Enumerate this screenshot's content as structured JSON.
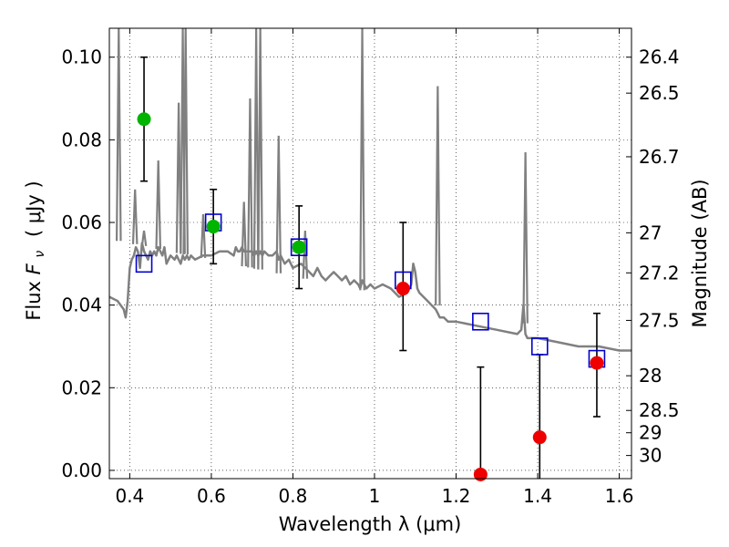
{
  "chart_data": {
    "type": "scatter",
    "title": "",
    "xlabel": "Wavelength  λ (μm)",
    "ylabel": "Flux  F_ν  ( μJy )",
    "ylabel_parts": {
      "prefix": "Flux  ",
      "symbol": "F",
      "subscript": "ν",
      "unit": "( μJy )"
    },
    "y2label": "Magnitude (AB)",
    "xlim": [
      0.35,
      1.63
    ],
    "ylim": [
      -0.002,
      0.107
    ],
    "grid": true,
    "x_ticks": [
      0.4,
      0.6,
      0.8,
      1.0,
      1.2,
      1.4,
      1.6
    ],
    "x_tick_labels": [
      "0.4",
      "0.6",
      "0.8",
      "1",
      "1.2",
      "1.4",
      "1.6"
    ],
    "y_ticks": [
      0.0,
      0.02,
      0.04,
      0.06,
      0.08,
      0.1
    ],
    "y_tick_labels": [
      "0.00",
      "0.02",
      "0.04",
      "0.06",
      "0.08",
      "0.10"
    ],
    "y2_tick_labels": [
      "26.4",
      "26.5",
      "26.7",
      "27",
      "27.2",
      "27.5",
      "28",
      "28.5",
      "29",
      "30"
    ],
    "y2_tick_values_flux": [
      0.1,
      0.0913,
      0.0759,
      0.0575,
      0.0478,
      0.0363,
      0.0229,
      0.0145,
      0.0091,
      0.0036
    ],
    "series": [
      {
        "kind": "model_spectrum",
        "color": "#808080",
        "x": [
          0.35,
          0.37,
          0.385,
          0.39,
          0.395,
          0.4,
          0.405,
          0.41,
          0.415,
          0.42,
          0.425,
          0.43,
          0.435,
          0.44,
          0.445,
          0.45,
          0.455,
          0.46,
          0.465,
          0.47,
          0.475,
          0.48,
          0.485,
          0.49,
          0.5,
          0.51,
          0.515,
          0.52,
          0.525,
          0.53,
          0.535,
          0.54,
          0.545,
          0.55,
          0.56,
          0.58,
          0.6,
          0.62,
          0.64,
          0.655,
          0.66,
          0.665,
          0.67,
          0.675,
          0.68,
          0.69,
          0.7,
          0.705,
          0.71,
          0.715,
          0.72,
          0.725,
          0.73,
          0.74,
          0.75,
          0.76,
          0.765,
          0.77,
          0.78,
          0.79,
          0.8,
          0.82,
          0.84,
          0.85,
          0.86,
          0.87,
          0.88,
          0.89,
          0.9,
          0.91,
          0.92,
          0.93,
          0.94,
          0.95,
          0.96,
          0.965,
          0.97,
          0.975,
          0.98,
          0.99,
          1.0,
          1.02,
          1.04,
          1.06,
          1.08,
          1.09,
          1.095,
          1.1,
          1.105,
          1.11,
          1.12,
          1.13,
          1.14,
          1.15,
          1.155,
          1.16,
          1.17,
          1.18,
          1.2,
          1.25,
          1.3,
          1.35,
          1.36,
          1.365,
          1.37,
          1.375,
          1.38,
          1.4,
          1.45,
          1.5,
          1.55,
          1.6,
          1.63
        ],
        "y": [
          0.042,
          0.041,
          0.039,
          0.037,
          0.041,
          0.049,
          0.051,
          0.052,
          0.054,
          0.053,
          0.049,
          0.055,
          0.053,
          0.052,
          0.051,
          0.053,
          0.052,
          0.053,
          0.052,
          0.054,
          0.053,
          0.052,
          0.054,
          0.05,
          0.052,
          0.051,
          0.052,
          0.051,
          0.05,
          0.052,
          0.051,
          0.052,
          0.051,
          0.052,
          0.051,
          0.052,
          0.052,
          0.053,
          0.053,
          0.052,
          0.054,
          0.053,
          0.053,
          0.054,
          0.053,
          0.053,
          0.053,
          0.052,
          0.053,
          0.052,
          0.053,
          0.052,
          0.053,
          0.052,
          0.052,
          0.053,
          0.051,
          0.052,
          0.05,
          0.051,
          0.049,
          0.05,
          0.048,
          0.047,
          0.049,
          0.047,
          0.046,
          0.047,
          0.048,
          0.047,
          0.046,
          0.047,
          0.045,
          0.046,
          0.045,
          0.044,
          0.046,
          0.045,
          0.044,
          0.045,
          0.044,
          0.045,
          0.044,
          0.042,
          0.043,
          0.045,
          0.05,
          0.048,
          0.044,
          0.043,
          0.042,
          0.041,
          0.04,
          0.039,
          0.038,
          0.037,
          0.037,
          0.036,
          0.036,
          0.035,
          0.034,
          0.033,
          0.034,
          0.04,
          0.033,
          0.032,
          0.032,
          0.032,
          0.031,
          0.03,
          0.03,
          0.029,
          0.029
        ]
      },
      {
        "kind": "model_emission_lines",
        "color": "#808080",
        "lines": [
          {
            "x": 0.373,
            "peak": 0.107
          },
          {
            "x": 0.413,
            "peak": 0.068
          },
          {
            "x": 0.435,
            "peak": 0.058
          },
          {
            "x": 0.47,
            "peak": 0.075
          },
          {
            "x": 0.52,
            "peak": 0.089
          },
          {
            "x": 0.53,
            "peak": 0.107
          },
          {
            "x": 0.537,
            "peak": 0.107
          },
          {
            "x": 0.58,
            "peak": 0.062
          },
          {
            "x": 0.68,
            "peak": 0.065
          },
          {
            "x": 0.695,
            "peak": 0.09
          },
          {
            "x": 0.71,
            "peak": 0.107
          },
          {
            "x": 0.72,
            "peak": 0.107
          },
          {
            "x": 0.765,
            "peak": 0.081
          },
          {
            "x": 0.83,
            "peak": 0.058
          },
          {
            "x": 0.97,
            "peak": 0.107
          },
          {
            "x": 1.155,
            "peak": 0.093
          },
          {
            "x": 1.37,
            "peak": 0.077
          }
        ]
      },
      {
        "kind": "model_photometry",
        "marker": "open-square",
        "color": "#0000cc",
        "x": [
          0.435,
          0.605,
          0.815,
          1.07,
          1.26,
          1.405,
          1.545
        ],
        "y": [
          0.05,
          0.06,
          0.054,
          0.046,
          0.036,
          0.03,
          0.027
        ]
      },
      {
        "kind": "observed_detections",
        "marker": "filled-circle",
        "color": "#00b400",
        "x": [
          0.435,
          0.605,
          0.815
        ],
        "y": [
          0.085,
          0.059,
          0.054
        ],
        "yerr_low": [
          0.07,
          0.05,
          0.044
        ],
        "yerr_high": [
          0.1,
          0.068,
          0.064
        ]
      },
      {
        "kind": "observed_low_sn",
        "marker": "filled-circle",
        "color": "#ee0000",
        "x": [
          1.07,
          1.26,
          1.405,
          1.545
        ],
        "y": [
          0.044,
          -0.001,
          0.008,
          0.026
        ],
        "yerr_low": [
          0.029,
          -0.002,
          -0.002,
          0.013
        ],
        "yerr_high": [
          0.06,
          0.025,
          0.028,
          0.038
        ]
      }
    ]
  }
}
